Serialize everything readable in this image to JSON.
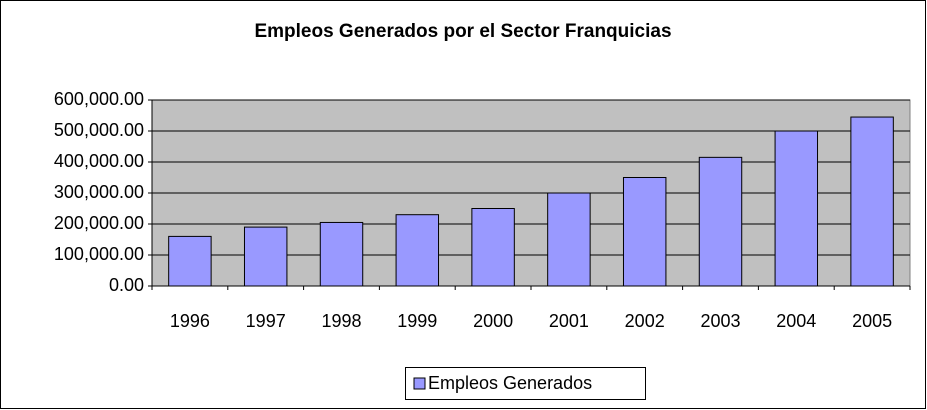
{
  "chart_data": {
    "type": "bar",
    "title": "Empleos Generados por el Sector Franquicias",
    "categories": [
      "1996",
      "1997",
      "1998",
      "1999",
      "2000",
      "2001",
      "2002",
      "2003",
      "2004",
      "2005"
    ],
    "series": [
      {
        "name": "Empleos Generados",
        "color": "#9999ff",
        "values": [
          160000,
          190000,
          205000,
          230000,
          250000,
          300000,
          350000,
          415000,
          500000,
          545000
        ]
      }
    ],
    "ylim": [
      0,
      600000
    ],
    "yticks": [
      {
        "value": 0,
        "label": "0.00"
      },
      {
        "value": 100000,
        "label": "100,000.00"
      },
      {
        "value": 200000,
        "label": "200,000.00"
      },
      {
        "value": 300000,
        "label": "300,000.00"
      },
      {
        "value": 400000,
        "label": "400,000.00"
      },
      {
        "value": 500000,
        "label": "500,000.00"
      },
      {
        "value": 600000,
        "label": "600,000.00"
      }
    ],
    "grid": true,
    "legend": "bottom"
  }
}
